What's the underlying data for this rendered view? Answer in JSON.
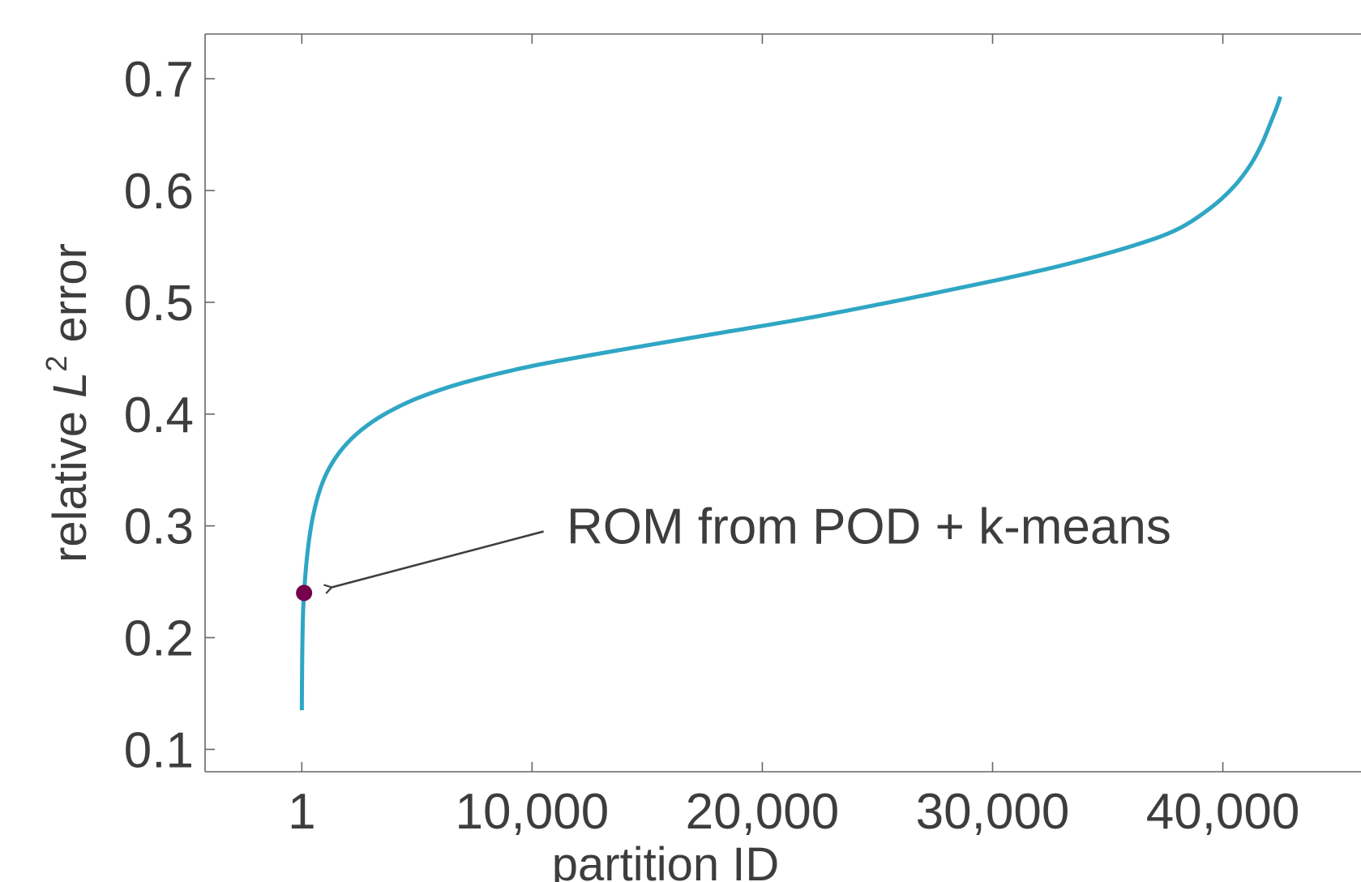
{
  "chart_data": {
    "type": "line",
    "xlabel": "partition ID",
    "ylabel": {
      "prefix": "relative ",
      "symbol": "L",
      "superscript": "2",
      "suffix": " error"
    },
    "xlim": [
      -4200,
      46000
    ],
    "ylim": [
      0.08,
      0.74
    ],
    "x_ticks": [
      {
        "value": 1,
        "label": "1"
      },
      {
        "value": 10000,
        "label": "10,000"
      },
      {
        "value": 20000,
        "label": "20,000"
      },
      {
        "value": 30000,
        "label": "30,000"
      },
      {
        "value": 40000,
        "label": "40,000"
      }
    ],
    "y_ticks": [
      {
        "value": 0.1,
        "label": "0.1"
      },
      {
        "value": 0.2,
        "label": "0.2"
      },
      {
        "value": 0.3,
        "label": "0.3"
      },
      {
        "value": 0.4,
        "label": "0.4"
      },
      {
        "value": 0.5,
        "label": "0.5"
      },
      {
        "value": 0.6,
        "label": "0.6"
      },
      {
        "value": 0.7,
        "label": "0.7"
      }
    ],
    "grid": false,
    "series": [
      {
        "color": "#2fa6c4",
        "x": [
          1,
          20,
          60,
          150,
          300,
          500,
          800,
          1200,
          1800,
          2600,
          3600,
          5000,
          7000,
          10000,
          14000,
          18000,
          22000,
          26000,
          30000,
          33000,
          36000,
          38000,
          39500,
          40500,
          41200,
          41700,
          42100,
          42350,
          42500
        ],
        "y": [
          0.135,
          0.185,
          0.225,
          0.255,
          0.285,
          0.31,
          0.333,
          0.352,
          0.37,
          0.386,
          0.4,
          0.414,
          0.428,
          0.443,
          0.458,
          0.472,
          0.486,
          0.502,
          0.519,
          0.533,
          0.55,
          0.565,
          0.585,
          0.604,
          0.623,
          0.642,
          0.662,
          0.675,
          0.684
        ]
      }
    ],
    "highlight_point": {
      "x": 100,
      "y": 0.24,
      "color": "#75004b"
    },
    "annotation": {
      "text": "ROM from POD + k-means",
      "text_x": 11500,
      "text_y": 0.3,
      "arrow_from_x": 10500,
      "arrow_from_y": 0.295,
      "arrow_to_x": 1300,
      "arrow_to_y": 0.245
    },
    "axis_color": "#666666",
    "text_color": "#3d3d3d"
  }
}
